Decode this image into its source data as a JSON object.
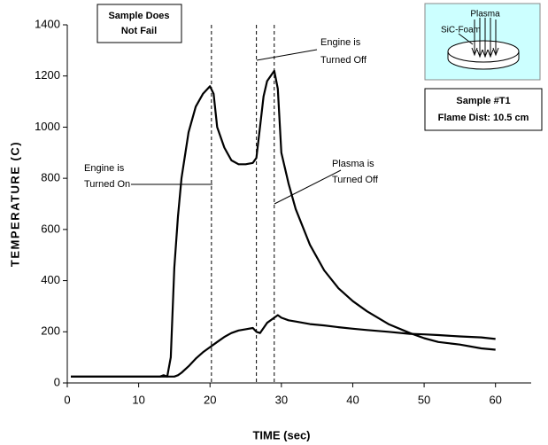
{
  "chart_data": {
    "type": "line",
    "x_label": "TIME (sec)",
    "y_label": "TEMPERATURE (C)",
    "xlim": [
      0,
      65
    ],
    "xticks": [
      0,
      10,
      20,
      30,
      40,
      50,
      60
    ],
    "ylim": [
      0,
      1400
    ],
    "yticks": [
      0,
      200,
      400,
      600,
      800,
      1000,
      1200,
      1400
    ],
    "x": [
      0.5,
      5,
      10,
      13,
      13.5,
      14,
      14.5,
      15,
      15.5,
      16,
      17,
      18,
      19,
      20,
      20.5,
      21,
      22,
      23,
      24,
      25,
      26,
      26.5,
      27,
      27.5,
      28,
      29,
      29.5,
      30,
      31,
      32,
      34,
      36,
      38,
      40,
      42,
      45,
      48,
      50,
      52,
      55,
      58,
      60
    ],
    "series": [
      {
        "color": "#000000",
        "values": [
          25,
          25,
          25,
          25,
          30,
          25,
          100,
          450,
          650,
          800,
          980,
          1080,
          1130,
          1160,
          1130,
          1000,
          920,
          870,
          855,
          855,
          860,
          880,
          1000,
          1120,
          1180,
          1220,
          1150,
          900,
          780,
          680,
          540,
          440,
          370,
          320,
          280,
          230,
          195,
          175,
          160,
          150,
          135,
          130
        ]
      },
      {
        "color": "#000000",
        "values": [
          25,
          25,
          25,
          25,
          25,
          25,
          25,
          25,
          30,
          40,
          65,
          95,
          120,
          140,
          150,
          160,
          180,
          195,
          205,
          210,
          215,
          200,
          195,
          215,
          235,
          255,
          265,
          255,
          245,
          240,
          230,
          225,
          218,
          212,
          207,
          200,
          192,
          190,
          187,
          182,
          178,
          172
        ]
      }
    ],
    "event_lines": [
      20.2,
      26.5,
      29
    ],
    "annotations": {
      "sample_status": [
        "Sample Does",
        "Not Fail"
      ],
      "engine_on": [
        "Engine is",
        "Turned On"
      ],
      "engine_off": [
        "Engine is",
        "Turned Off"
      ],
      "plasma_off": [
        "Plasma is",
        "Turned Off"
      ]
    },
    "inset": {
      "plasma_label": "Plasma",
      "foam_label": "SiC-Foam",
      "sample_id": "Sample #T1",
      "flame_distance": "Flame Dist: 10.5 cm"
    }
  }
}
